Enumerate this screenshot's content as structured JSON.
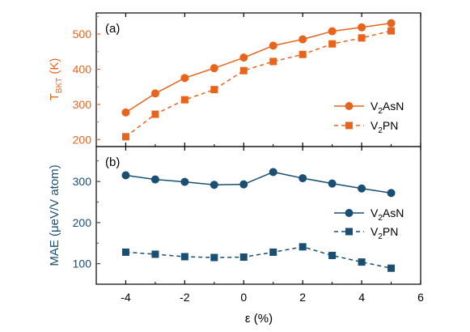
{
  "colors": {
    "top": "#e8641b",
    "bottom": "#1a4f74",
    "axis": "#000000"
  },
  "chart_data": [
    {
      "type": "line",
      "panel_label": "(a)",
      "ylabel": {
        "main": "T",
        "sub": "BKT",
        "unit": " (K)"
      },
      "x": [
        -4,
        -3,
        -2,
        -1,
        0,
        1,
        2,
        3,
        4,
        5
      ],
      "xlim": [
        -5,
        6
      ],
      "ylim": [
        180,
        560
      ],
      "yticks": [
        200,
        300,
        400,
        500
      ],
      "series": [
        {
          "name": {
            "pre": "V",
            "sub": "2",
            "post": "AsN"
          },
          "marker": "circle",
          "style": "solid",
          "values": [
            277,
            331,
            375,
            403,
            433,
            467,
            485,
            508,
            519,
            531
          ]
        },
        {
          "name": {
            "pre": "V",
            "sub": "2",
            "post": "PN"
          },
          "marker": "square",
          "style": "dashed",
          "values": [
            208,
            272,
            313,
            342,
            396,
            422,
            442,
            472,
            489,
            509
          ]
        }
      ],
      "legend_position": "bottom-right"
    },
    {
      "type": "line",
      "panel_label": "(b)",
      "ylabel": "MAE (μeV/V atom)",
      "xlabel": "ε (%)",
      "x": [
        -4,
        -3,
        -2,
        -1,
        0,
        1,
        2,
        3,
        4,
        5
      ],
      "xlim": [
        -5,
        6
      ],
      "xticks": [
        -4,
        -2,
        0,
        2,
        4,
        6
      ],
      "ylim": [
        50,
        385
      ],
      "yticks": [
        100,
        200,
        300
      ],
      "series": [
        {
          "name": {
            "pre": "V",
            "sub": "2",
            "post": "AsN"
          },
          "marker": "circle",
          "style": "solid",
          "values": [
            315,
            305,
            299,
            292,
            293,
            323,
            308,
            295,
            283,
            272
          ]
        },
        {
          "name": {
            "pre": "V",
            "sub": "2",
            "post": "PN"
          },
          "marker": "square",
          "style": "dashed",
          "values": [
            128,
            123,
            117,
            115,
            116,
            128,
            141,
            120,
            104,
            89
          ]
        }
      ],
      "legend_position": "center-right"
    }
  ]
}
